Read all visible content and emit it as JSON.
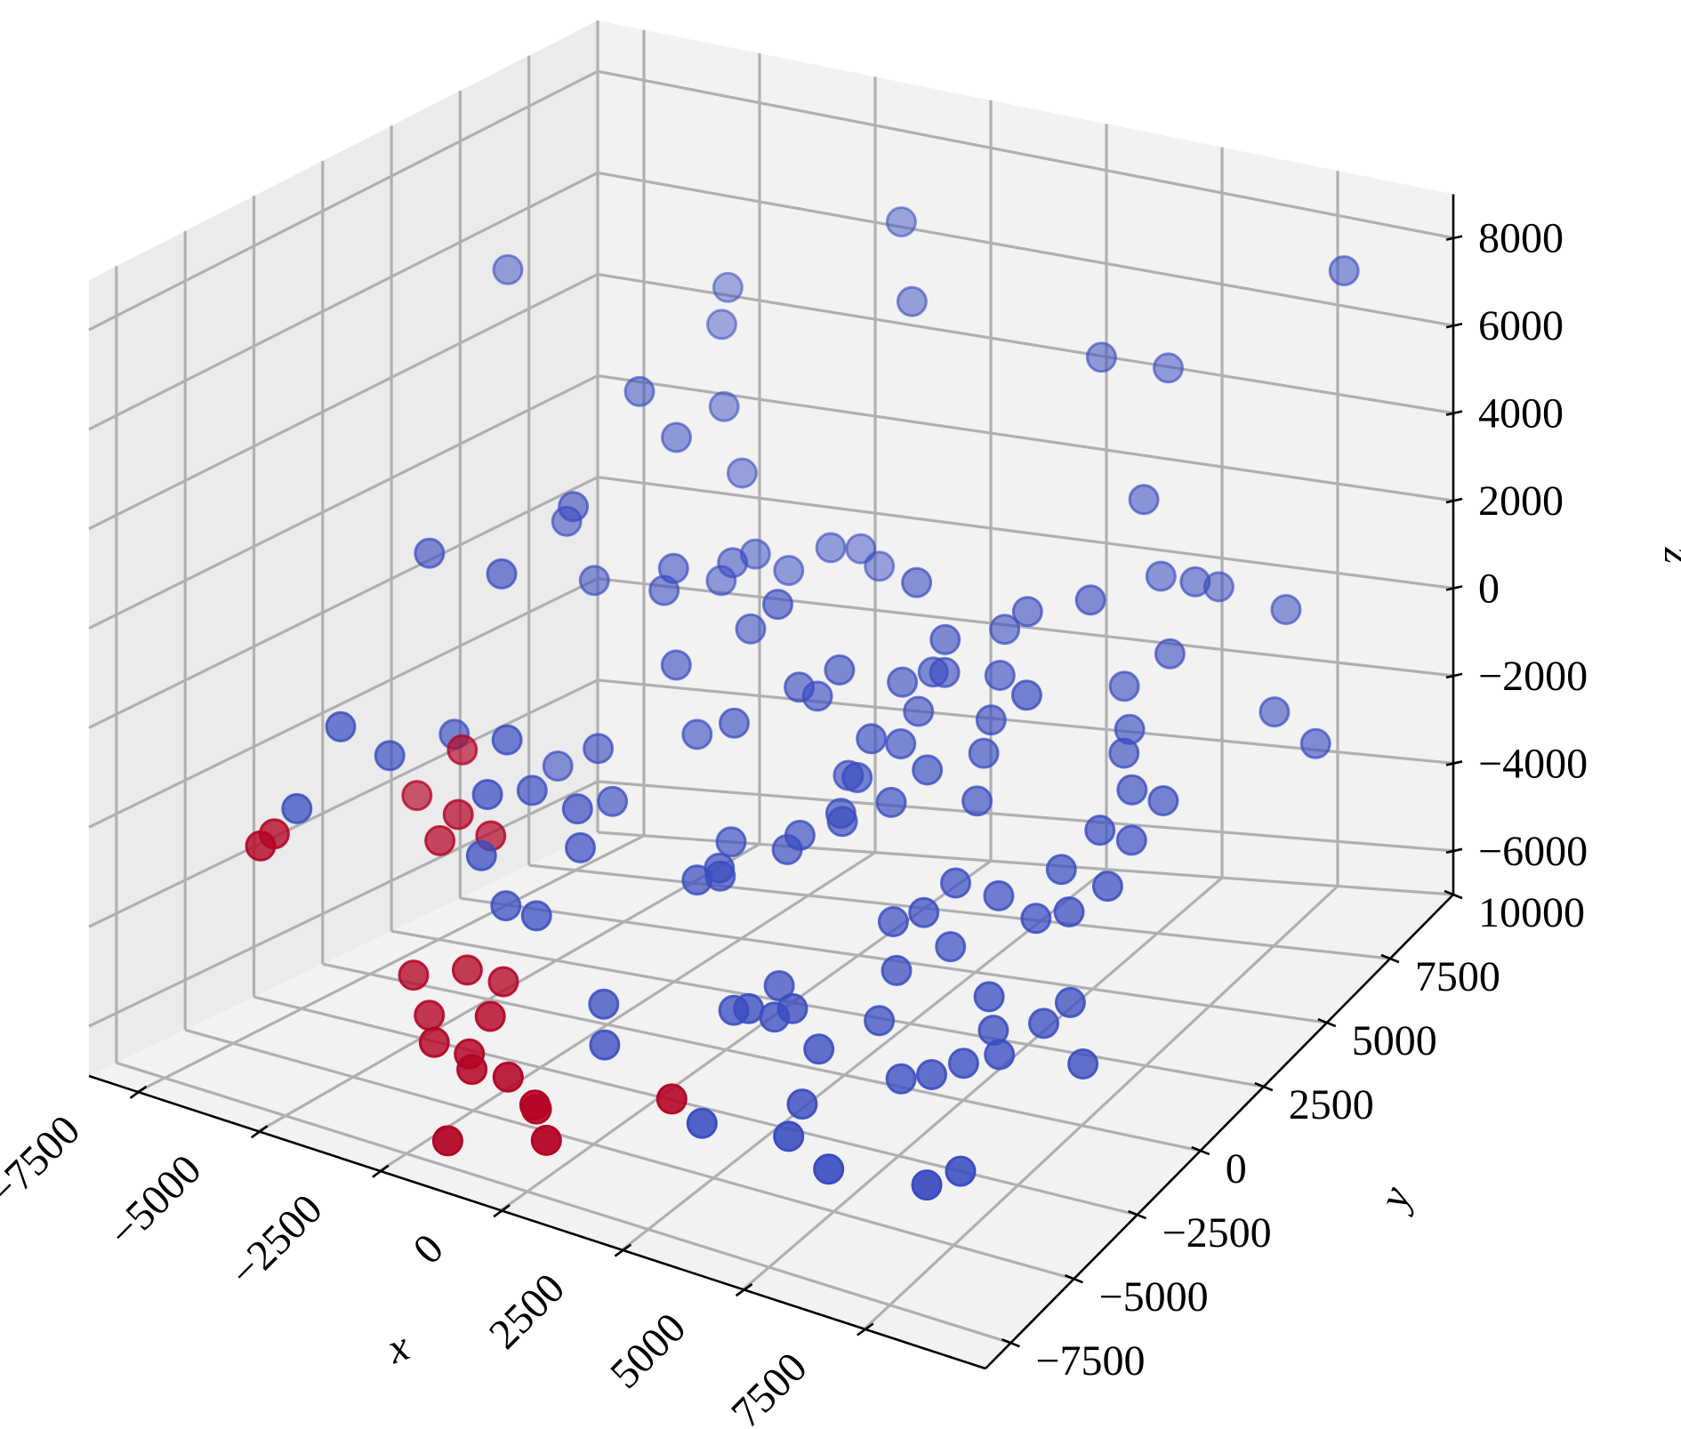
{
  "chart_data": {
    "type": "scatter3d",
    "title": "",
    "xlabel": "x",
    "ylabel": "y",
    "zlabel": "z",
    "xlim": [
      -8500,
      10000
    ],
    "ylim": [
      -8500,
      10000
    ],
    "zlim": [
      -7000,
      9000
    ],
    "x_ticks": [
      -7500,
      -5000,
      -2500,
      0,
      2500,
      5000,
      7500
    ],
    "y_ticks": [
      -7500,
      -5000,
      -2500,
      0,
      2500,
      5000,
      7500,
      10000
    ],
    "z_ticks": [
      -6000,
      -4000,
      -2000,
      0,
      2000,
      4000,
      6000,
      8000
    ],
    "x_tick_labels": [
      "−7500",
      "−5000",
      "−2500",
      "0",
      "2500",
      "5000",
      "7500"
    ],
    "y_tick_labels": [
      "−7500",
      "−5000",
      "−2500",
      "0",
      "2500",
      "5000",
      "7500",
      "10000"
    ],
    "z_tick_labels": [
      "−6000",
      "−4000",
      "−2000",
      "0",
      "2000",
      "4000",
      "6000",
      "8000"
    ],
    "grid": true,
    "colors": {
      "blue": "#3a4cc0",
      "red": "#b40426",
      "pane": "#f2f2f2",
      "grid": "#b0b0b0"
    },
    "series": [
      {
        "color": "blue",
        "points": [
          [
            -7600,
            5200,
            5600
          ],
          [
            -7000,
            1300,
            1200
          ],
          [
            -5300,
            1000,
            1300
          ],
          [
            -4700,
            2600,
            2300
          ],
          [
            -4500,
            4700,
            4000
          ],
          [
            -7600,
            -2500,
            -3000
          ],
          [
            -7200,
            -1600,
            -1500
          ],
          [
            -6800,
            -500,
            -2300
          ],
          [
            -6300,
            1000,
            -2200
          ],
          [
            -4400,
            -1100,
            -2300
          ],
          [
            -5300,
            3400,
            1600
          ],
          [
            -5000,
            3900,
            300
          ],
          [
            -3400,
            3700,
            500
          ],
          [
            -3200,
            3700,
            1000
          ],
          [
            -2800,
            3100,
            -700
          ],
          [
            -2400,
            4500,
            1000
          ],
          [
            -1900,
            4300,
            -200
          ],
          [
            -4000,
            5200,
            3000
          ],
          [
            -3900,
            6800,
            3100
          ],
          [
            -3400,
            6600,
            1900
          ],
          [
            -3100,
            5300,
            200
          ],
          [
            -2600,
            5700,
            700
          ],
          [
            -4300,
            7400,
            4500
          ],
          [
            -4400,
            7800,
            5100
          ],
          [
            -5200,
            2900,
            -3200
          ],
          [
            -4500,
            -200,
            -1500
          ],
          [
            -4200,
            200,
            -2600
          ],
          [
            -3300,
            300,
            -2800
          ],
          [
            -4300,
            -1500,
            -3400
          ],
          [
            -3900,
            -1300,
            -4400
          ],
          [
            -3200,
            -1400,
            -4400
          ],
          [
            -2900,
            -300,
            -3300
          ],
          [
            -4000,
            2300,
            -2400
          ],
          [
            -3300,
            1600,
            -3100
          ],
          [
            -2300,
            3000,
            -2000
          ],
          [
            -1400,
            2800,
            -1500
          ],
          [
            -2000,
            5900,
            400
          ],
          [
            -1500,
            6600,
            700
          ],
          [
            -1200,
            7200,
            500
          ],
          [
            -800,
            7200,
            200
          ],
          [
            -900,
            8200,
            7000
          ],
          [
            -100,
            7200,
            5900
          ],
          [
            -700,
            3200,
            1000
          ],
          [
            -300,
            3300,
            -700
          ],
          [
            200,
            3100,
            -700
          ],
          [
            500,
            3400,
            -200
          ],
          [
            -1900,
            -1200,
            -6000
          ],
          [
            -1600,
            -1700,
            -6600
          ],
          [
            1300,
            4900,
            1200
          ],
          [
            1500,
            4000,
            -500
          ],
          [
            1400,
            3000,
            -1300
          ],
          [
            800,
            3200,
            -2300
          ],
          [
            1200,
            2200,
            -2600
          ],
          [
            1600,
            2100,
            -1700
          ],
          [
            3800,
            7500,
            5400
          ],
          [
            3500,
            5200,
            900
          ],
          [
            2900,
            5400,
            300
          ],
          [
            3300,
            4500,
            -200
          ],
          [
            2400,
            4000,
            -100
          ],
          [
            2300,
            4200,
            500
          ],
          [
            2100,
            4100,
            -200
          ],
          [
            3500,
            3800,
            -800
          ],
          [
            3700,
            2900,
            -2100
          ],
          [
            3400,
            3700,
            -1500
          ],
          [
            2700,
            2800,
            -1600
          ],
          [
            1900,
            3900,
            -1000
          ],
          [
            1800,
            3400,
            -1500
          ],
          [
            2100,
            2500,
            -2300
          ],
          [
            1400,
            1900,
            -2600
          ],
          [
            500,
            1900,
            -3100
          ],
          [
            400,
            1600,
            -3300
          ],
          [
            -900,
            1800,
            -3500
          ],
          [
            -700,
            1000,
            -3700
          ],
          [
            -1000,
            700,
            -3900
          ],
          [
            -400,
            500,
            -3600
          ],
          [
            1900,
            -900,
            -5300
          ],
          [
            1200,
            -1300,
            -5300
          ],
          [
            4900,
            8100,
            5100
          ],
          [
            5100,
            6800,
            2900
          ],
          [
            5300,
            7100,
            1100
          ],
          [
            6200,
            6800,
            1300
          ],
          [
            4900,
            5100,
            1500
          ],
          [
            4700,
            3000,
            400
          ],
          [
            6100,
            7900,
            600
          ],
          [
            6100,
            6000,
            100
          ],
          [
            5400,
            5500,
            -500
          ],
          [
            5900,
            4800,
            -1000
          ],
          [
            6000,
            4400,
            -1300
          ],
          [
            6500,
            3800,
            -1700
          ],
          [
            7000,
            4100,
            -2000
          ],
          [
            6200,
            3100,
            -2300
          ],
          [
            6600,
            3600,
            -2700
          ],
          [
            6800,
            2300,
            -3000
          ],
          [
            6200,
            1900,
            -3500
          ],
          [
            5600,
            2700,
            -3100
          ],
          [
            5500,
            1900,
            -3800
          ],
          [
            4600,
            2100,
            -3600
          ],
          [
            3800,
            1900,
            -3400
          ],
          [
            3400,
            1400,
            -3900
          ],
          [
            2700,
            1500,
            -4300
          ],
          [
            3100,
            900,
            -5000
          ],
          [
            3800,
            1700,
            -4700
          ],
          [
            5000,
            1000,
            -5200
          ],
          [
            5200,
            800,
            -5800
          ],
          [
            5600,
            300,
            -6000
          ],
          [
            6100,
            1100,
            -5600
          ],
          [
            6500,
            1400,
            -5200
          ],
          [
            4900,
            200,
            -6300
          ],
          [
            4500,
            -300,
            -6400
          ],
          [
            3800,
            -200,
            -6700
          ],
          [
            2900,
            600,
            -6000
          ],
          [
            2400,
            -800,
            -6100
          ],
          [
            2600,
            -1800,
            -6800
          ],
          [
            1300,
            -500,
            -5800
          ],
          [
            900,
            400,
            -5600
          ],
          [
            500,
            -600,
            -5800
          ],
          [
            7600,
            7800,
            400
          ],
          [
            8300,
            8800,
            7600
          ],
          [
            7900,
            6800,
            -1300
          ],
          [
            9000,
            6400,
            -1600
          ],
          [
            7200,
            600,
            -6000
          ],
          [
            6300,
            -2500,
            -7000
          ],
          [
            6400,
            -4000,
            -6500
          ],
          [
            4300,
            -3900,
            -6800
          ],
          [
            3300,
            -3600,
            -6500
          ],
          [
            1600,
            -3800,
            -6600
          ]
        ]
      },
      {
        "color": "red",
        "points": [
          [
            -5900,
            600,
            -2300
          ],
          [
            -6800,
            500,
            -3400
          ],
          [
            -5300,
            -600,
            -3100
          ],
          [
            -5400,
            -1100,
            -3500
          ],
          [
            -4900,
            -100,
            -3600
          ],
          [
            -7500,
            -3500,
            -3200
          ],
          [
            -7500,
            -4000,
            -3300
          ],
          [
            -5100,
            -2600,
            -5700
          ],
          [
            -4200,
            -2200,
            -5500
          ],
          [
            -3500,
            -2100,
            -5600
          ],
          [
            -3100,
            -3300,
            -5800
          ],
          [
            -4600,
            -2900,
            -6300
          ],
          [
            -4100,
            -3600,
            -6500
          ],
          [
            -3200,
            -3900,
            -6400
          ],
          [
            -2000,
            -4600,
            -6300
          ],
          [
            -2700,
            -4700,
            -6300
          ],
          [
            -1300,
            -4800,
            -6700
          ],
          [
            -1000,
            -5400,
            -6300
          ],
          [
            -100,
            -6600,
            -6300
          ],
          [
            1300,
            -4400,
            -5900
          ],
          [
            -2200,
            -6500,
            -7000
          ]
        ]
      }
    ]
  }
}
